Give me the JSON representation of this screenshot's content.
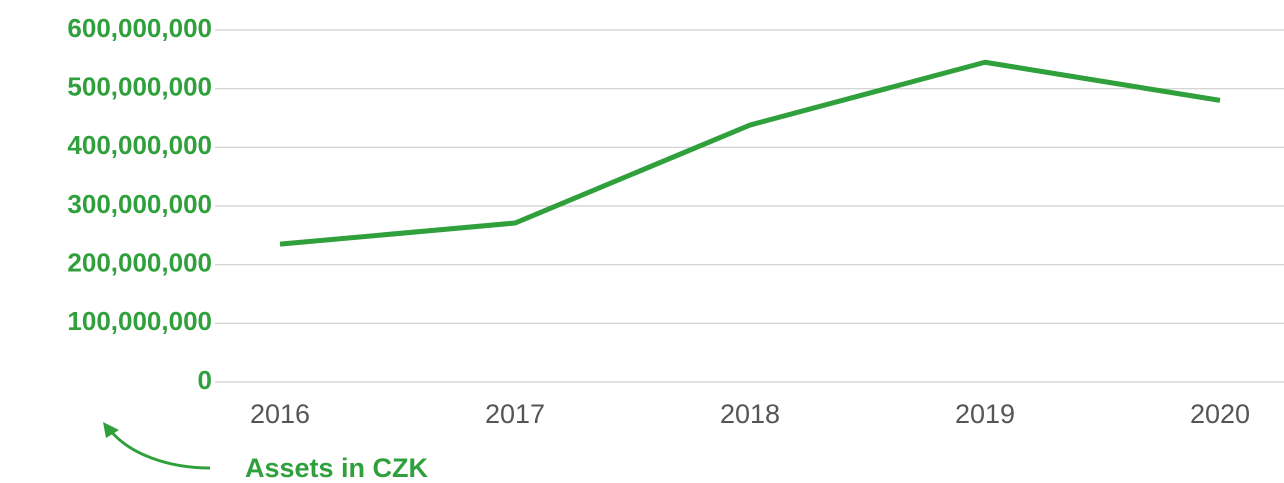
{
  "chart_data": {
    "type": "line",
    "categories": [
      "2016",
      "2017",
      "2018",
      "2019",
      "2020"
    ],
    "series": [
      {
        "name": "Assets in CZK",
        "color": "#30a03c",
        "values": [
          235000000,
          271000000,
          438000000,
          545000000,
          480000000
        ]
      }
    ],
    "ylim": [
      0,
      600000000
    ],
    "yticks": [
      0,
      {
        "value": 100000000,
        "label": "100,000,000"
      },
      {
        "value": 200000000,
        "label": "200,000,000"
      },
      {
        "value": 300000000,
        "label": "300,000,000"
      },
      {
        "value": 400000000,
        "label": "400,000,000"
      },
      {
        "value": 500000000,
        "label": "500,000,000"
      },
      {
        "value": 600000000,
        "label": "600,000,000"
      }
    ],
    "grid": true,
    "annotation": "Assets in CZK"
  }
}
